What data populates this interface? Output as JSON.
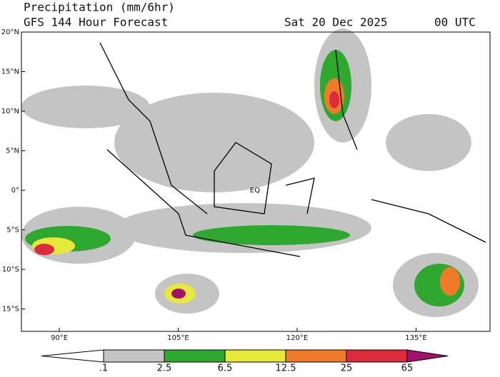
{
  "header": {
    "title": "Precipitation (mm/6hr)",
    "subtitle": "GFS 144 Hour Forecast",
    "date": "Sat 20 Dec 2025",
    "time": "00 UTC"
  },
  "map": {
    "lat_labels": [
      "20°N",
      "15°N",
      "10°N",
      "5°N",
      "0°",
      "5°S",
      "10°S",
      "15°S"
    ],
    "lon_labels": [
      "90°E",
      "105°E",
      "120°E",
      "135°E"
    ],
    "annotation": "EQ"
  },
  "colorbar": {
    "labels": [
      ".1",
      "2.5",
      "6.5",
      "12.5",
      "25",
      "65"
    ],
    "colors": [
      "#ffffff",
      "#c4c4c4",
      "#2ea82e",
      "#e6e83a",
      "#f07a28",
      "#dc2c3c",
      "#a0126e"
    ]
  }
}
